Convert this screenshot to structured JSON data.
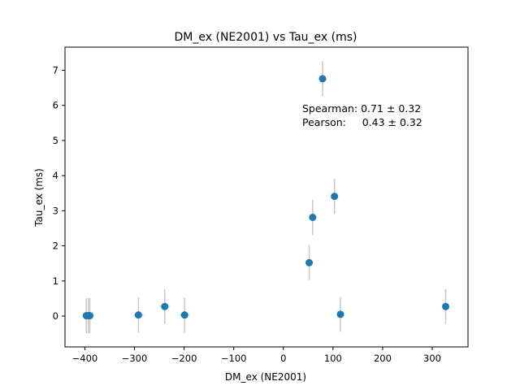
{
  "chart_data": {
    "type": "scatter",
    "title": "DM_ex (NE2001) vs Tau_ex (ms)",
    "xlabel": "DM_ex (NE2001)",
    "ylabel": "Tau_ex (ms)",
    "xlim": [
      -440,
      372
    ],
    "ylim": [
      -0.88,
      7.66
    ],
    "xticks": [
      -400,
      -300,
      -200,
      -100,
      0,
      100,
      200,
      300
    ],
    "yticks": [
      0,
      1,
      2,
      3,
      4,
      5,
      6,
      7
    ],
    "grid": false,
    "marker_color": "#1f77b4",
    "errorbar_color": "#c8c8c8",
    "points": [
      {
        "x": -397,
        "y": 0.01,
        "yerr": 0.5,
        "xerr": 4
      },
      {
        "x": -393,
        "y": 0.01,
        "yerr": 0.5,
        "xerr": 4
      },
      {
        "x": -390,
        "y": 0.01,
        "yerr": 0.5,
        "xerr": 4
      },
      {
        "x": -292,
        "y": 0.03,
        "yerr": 0.5,
        "xerr": 10
      },
      {
        "x": -239,
        "y": 0.27,
        "yerr": 0.5,
        "xerr": 10
      },
      {
        "x": -199,
        "y": 0.03,
        "yerr": 0.5,
        "xerr": 10
      },
      {
        "x": 52,
        "y": 1.52,
        "yerr": 0.5,
        "xerr": 8
      },
      {
        "x": 59,
        "y": 2.81,
        "yerr": 0.5,
        "xerr": 4
      },
      {
        "x": 79,
        "y": 6.76,
        "yerr": 0.5,
        "xerr": 4
      },
      {
        "x": 103,
        "y": 3.41,
        "yerr": 0.5,
        "xerr": 4
      },
      {
        "x": 115,
        "y": 0.05,
        "yerr": 0.5,
        "xerr": 4
      },
      {
        "x": 327,
        "y": 0.27,
        "yerr": 0.5,
        "xerr": 4
      }
    ],
    "annotations": [
      "Spearman: 0.71 ± 0.32",
      "Pearson:     0.43 ± 0.32"
    ]
  }
}
